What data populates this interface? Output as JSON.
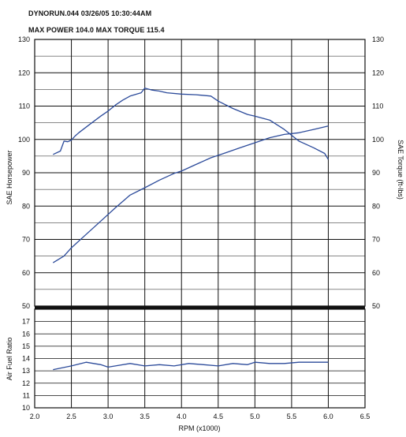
{
  "header": {
    "run_line": "DYNORUN.044  03/26/05   10:30:44AM",
    "max_line": "MAX POWER 104.0     MAX TORQUE 115.4"
  },
  "colors": {
    "curve": "#2b4a9a",
    "grid": "#111111",
    "paper": "#ffffff"
  },
  "chart_data": [
    {
      "type": "line",
      "name": "dyno-upper",
      "xlabel": "RPM (x1000)",
      "ylabel": "SAE Horsepower",
      "ylabel_right": "SAE Torque (ft-lbs)",
      "xlim": [
        2.0,
        6.5
      ],
      "ylim": [
        50,
        130
      ],
      "x_ticks": [
        2.0,
        2.5,
        3.0,
        3.5,
        4.0,
        4.5,
        5.0,
        5.5,
        6.0,
        6.5
      ],
      "y_ticks": [
        50,
        60,
        70,
        80,
        90,
        100,
        110,
        120,
        130
      ],
      "y_ticks_right": [
        50,
        60,
        70,
        80,
        90,
        100,
        110,
        120,
        130
      ],
      "grid": true,
      "series": [
        {
          "role": "torque",
          "x": [
            2.25,
            2.35,
            2.4,
            2.45,
            2.5,
            2.55,
            2.6,
            2.75,
            2.9,
            3.0,
            3.1,
            3.2,
            3.3,
            3.45,
            3.5,
            3.6,
            3.7,
            3.8,
            4.0,
            4.2,
            4.4,
            4.5,
            4.7,
            4.9,
            5.0,
            5.2,
            5.4,
            5.6,
            5.8,
            5.95,
            6.0
          ],
          "y": [
            95.5,
            96.5,
            99.5,
            99.3,
            99.8,
            101.0,
            102.0,
            104.5,
            107.0,
            108.5,
            110.3,
            111.8,
            113.0,
            114.0,
            115.4,
            114.8,
            114.5,
            114.0,
            113.6,
            113.4,
            113.0,
            111.5,
            109.3,
            107.5,
            107.0,
            105.8,
            103.0,
            99.5,
            97.5,
            95.8,
            94.0
          ]
        },
        {
          "role": "power",
          "x": [
            2.25,
            2.4,
            2.5,
            2.7,
            2.9,
            3.1,
            3.3,
            3.5,
            3.7,
            3.9,
            4.0,
            4.2,
            4.4,
            4.6,
            4.8,
            5.0,
            5.2,
            5.4,
            5.6,
            5.8,
            6.0
          ],
          "y": [
            63.0,
            65.0,
            67.5,
            71.5,
            75.5,
            79.5,
            83.3,
            85.5,
            87.8,
            89.8,
            90.5,
            92.5,
            94.5,
            96.0,
            97.5,
            99.0,
            100.5,
            101.5,
            102.0,
            103.0,
            104.0
          ]
        }
      ]
    },
    {
      "type": "line",
      "name": "air-fuel",
      "ylabel": "Air Fuel Ratio",
      "xlim": [
        2.0,
        6.5
      ],
      "ylim": [
        10,
        18
      ],
      "y_ticks": [
        10,
        11,
        12,
        13,
        14,
        15,
        16,
        17
      ],
      "grid": true,
      "series": [
        {
          "role": "afr",
          "x": [
            2.25,
            2.5,
            2.7,
            2.9,
            3.0,
            3.1,
            3.3,
            3.5,
            3.7,
            3.9,
            4.1,
            4.3,
            4.5,
            4.7,
            4.9,
            5.0,
            5.2,
            5.4,
            5.6,
            5.8,
            6.0
          ],
          "y": [
            13.1,
            13.4,
            13.7,
            13.5,
            13.3,
            13.4,
            13.6,
            13.4,
            13.5,
            13.4,
            13.6,
            13.5,
            13.4,
            13.6,
            13.5,
            13.7,
            13.6,
            13.6,
            13.7,
            13.7,
            13.7
          ]
        }
      ]
    }
  ]
}
